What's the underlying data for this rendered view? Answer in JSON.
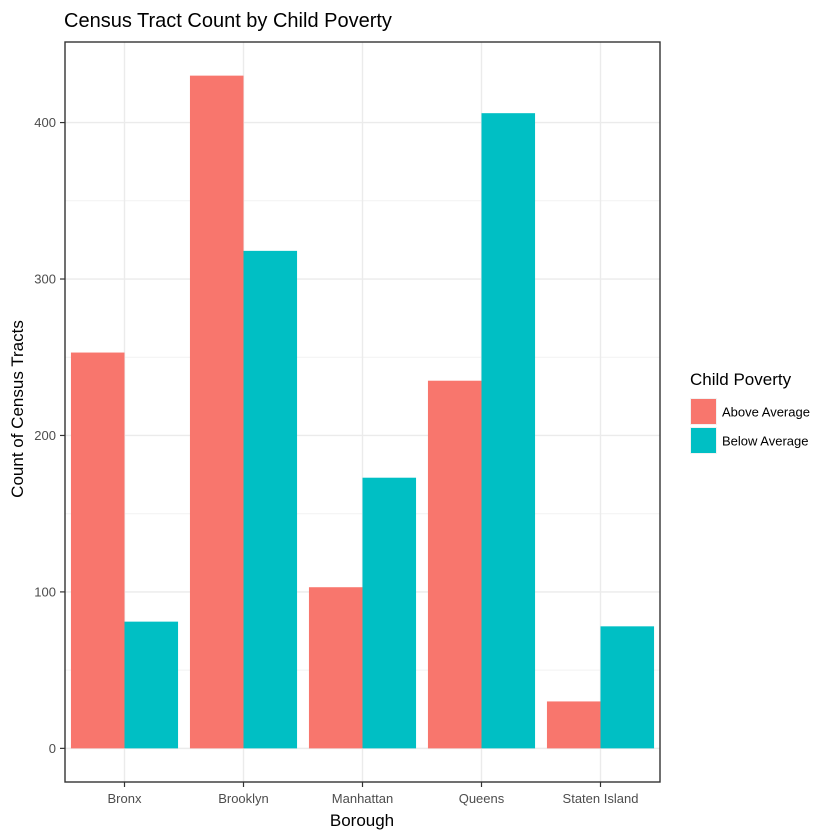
{
  "chart_data": {
    "type": "bar",
    "title": "Census Tract Count by Child Poverty",
    "xlabel": "Borough",
    "ylabel": "Count of Census Tracts",
    "categories": [
      "Bronx",
      "Brooklyn",
      "Manhattan",
      "Queens",
      "Staten Island"
    ],
    "series": [
      {
        "name": "Above Average",
        "color": "#F8766D",
        "values": [
          253,
          430,
          103,
          235,
          30
        ]
      },
      {
        "name": "Below Average",
        "color": "#00BFC4",
        "values": [
          81,
          318,
          173,
          406,
          78
        ]
      }
    ],
    "ylim": [
      -21.5,
      451.5
    ],
    "yticks": [
      0,
      100,
      200,
      300,
      400
    ],
    "ytick_labels": [
      "0",
      "100",
      "200",
      "300",
      "400"
    ],
    "grid": true,
    "legend": {
      "title": "Child Poverty",
      "position": "right"
    }
  }
}
